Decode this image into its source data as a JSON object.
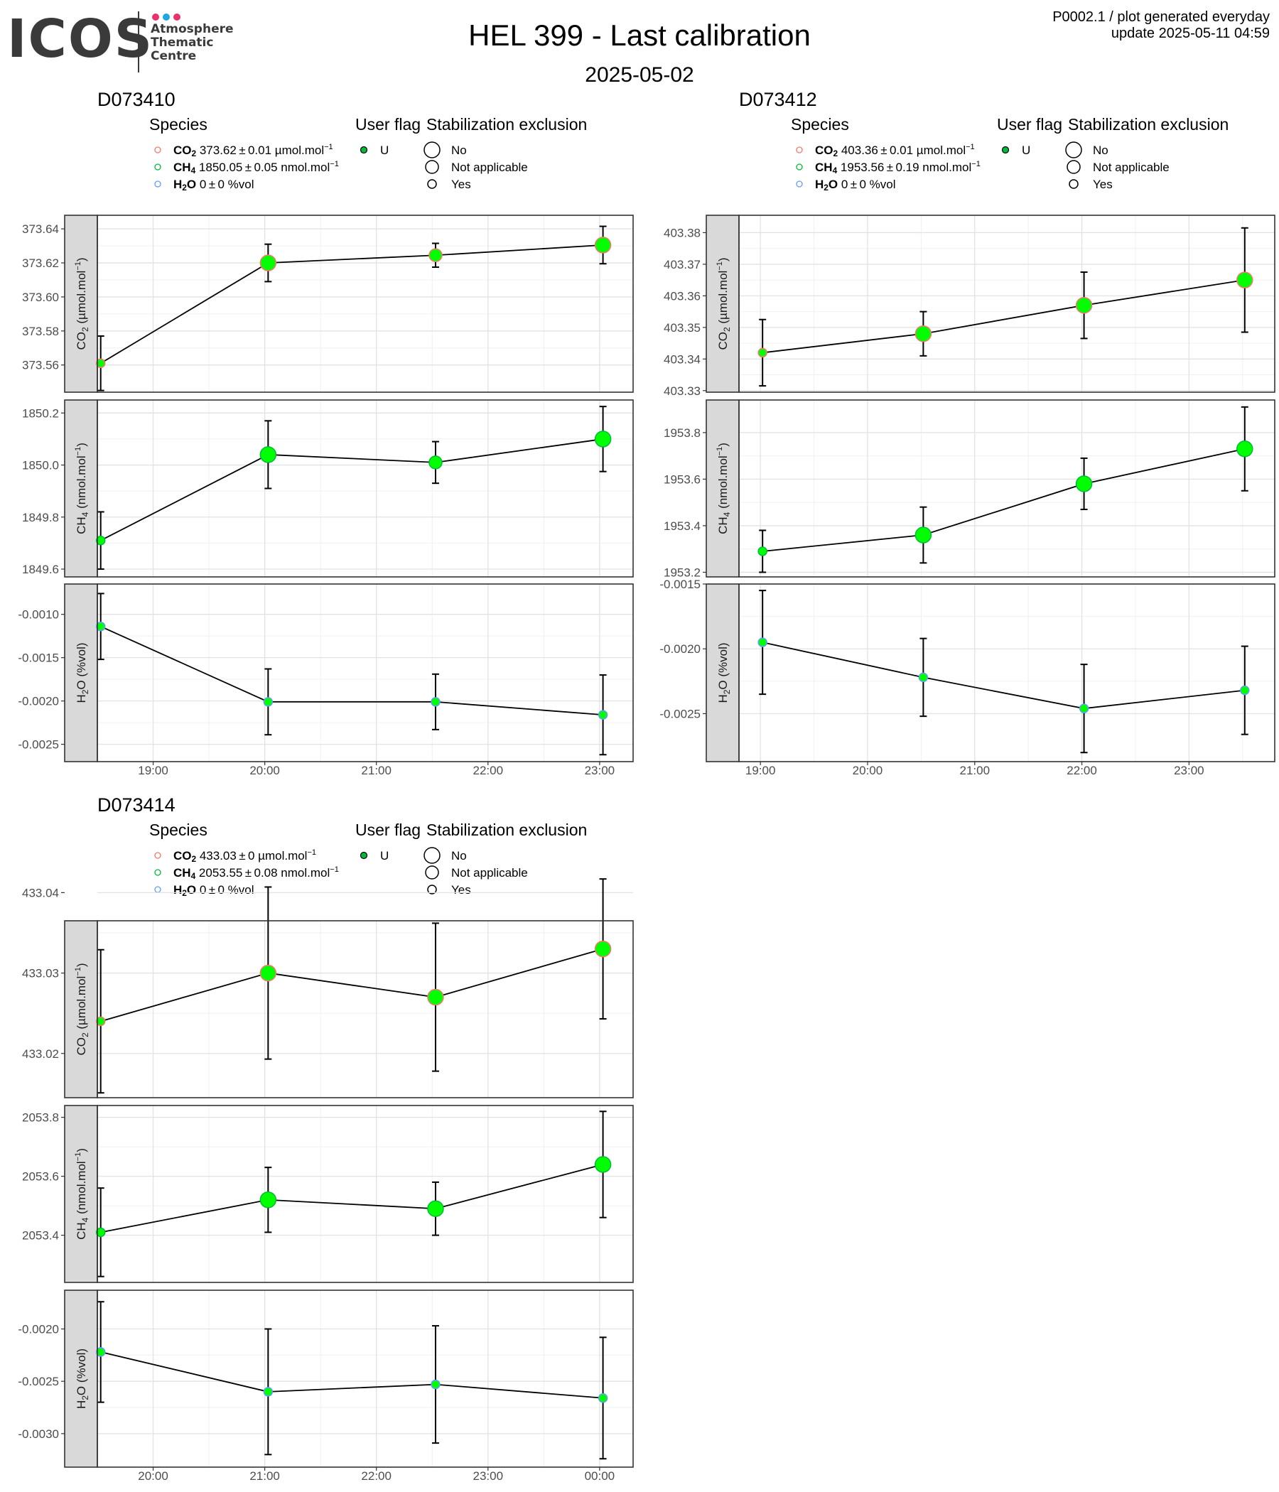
{
  "header": {
    "logo": {
      "word": "ICOS",
      "line1": "Atmosphere",
      "line2": "Thematic",
      "line3": "Centre",
      "dot_colors": [
        "#e8336d",
        "#1ea7e1",
        "#e8336d"
      ]
    },
    "title": "HEL 399 - Last calibration",
    "subtitle": "2025-05-02",
    "ref_line1": "P0002.1 / plot generated everyday",
    "ref_line2": "update  2025-05-11 04:59"
  },
  "legend_labels": {
    "species_title": "Species",
    "flag_title": "User flag",
    "stab_title": "Stabilization exclusion",
    "flag_value": "U",
    "stab_values": [
      "No",
      "Not applicable",
      "Yes"
    ],
    "species_colors": {
      "CO2": "#f8766d",
      "CH4": "#00ba38",
      "H2O": "#619cff"
    },
    "point_color": "#00ff00"
  },
  "chart_data": [
    {
      "type": "scatter",
      "title": "D073410",
      "legend": [
        {
          "name": "CO2",
          "value": "373.62 ± 0.01",
          "unit": "µmol.mol",
          "sup": "−1"
        },
        {
          "name": "CH4",
          "value": "1850.05 ± 0.05",
          "unit": "nmol.mol",
          "sup": "−1"
        },
        {
          "name": "H2O",
          "value": "0 ± 0",
          "unit": "%vol",
          "sup": ""
        }
      ],
      "x_ticks": [
        "19:00",
        "20:00",
        "21:00",
        "22:00",
        "23:00"
      ],
      "x_tick_hours": [
        19,
        20,
        21,
        22,
        23
      ],
      "xlim": [
        18.5,
        23.3
      ],
      "panels": [
        {
          "species": "CO2",
          "ylabel": "CO2 (µmol.mol-1)",
          "ylim": [
            373.544,
            373.648
          ],
          "y_ticks": [
            373.56,
            373.58,
            373.6,
            373.62,
            373.64
          ],
          "y_labels": [
            "373.56",
            "373.58",
            "373.60",
            "373.62",
            "373.64"
          ],
          "points": [
            {
              "x": 18.53,
              "y": 373.561,
              "err": 0.016,
              "stab": "Yes"
            },
            {
              "x": 20.03,
              "y": 373.62,
              "err": 0.011,
              "stab": "No"
            },
            {
              "x": 21.53,
              "y": 373.6245,
              "err": 0.007,
              "stab": "Not applicable"
            },
            {
              "x": 23.03,
              "y": 373.6305,
              "err": 0.011,
              "stab": "No"
            }
          ]
        },
        {
          "species": "CH4",
          "ylabel": "CH4 (nmol.mol-1)",
          "ylim": [
            1849.57,
            1850.25
          ],
          "y_ticks": [
            1849.6,
            1849.8,
            1850.0,
            1850.2
          ],
          "y_labels": [
            "1849.6",
            "1849.8",
            "1850.0",
            "1850.2"
          ],
          "points": [
            {
              "x": 18.53,
              "y": 1849.71,
              "err": 0.11,
              "stab": "Yes"
            },
            {
              "x": 20.03,
              "y": 1850.04,
              "err": 0.13,
              "stab": "No"
            },
            {
              "x": 21.53,
              "y": 1850.01,
              "err": 0.08,
              "stab": "Not applicable"
            },
            {
              "x": 23.03,
              "y": 1850.1,
              "err": 0.125,
              "stab": "No"
            }
          ]
        },
        {
          "species": "H2O",
          "ylabel": "H2O (%vol)",
          "ylim": [
            -0.0027,
            -0.00065
          ],
          "y_ticks": [
            -0.001,
            -0.0015,
            -0.002,
            -0.0025
          ],
          "y_labels": [
            "-0.0010",
            "-0.0015",
            "-0.0020",
            "-0.0025"
          ],
          "points": [
            {
              "x": 18.53,
              "y": -0.00114,
              "err": 0.00038,
              "stab": "Yes"
            },
            {
              "x": 20.03,
              "y": -0.00201,
              "err": 0.00038,
              "stab": "Yes"
            },
            {
              "x": 21.53,
              "y": -0.00201,
              "err": 0.00032,
              "stab": "Yes"
            },
            {
              "x": 23.03,
              "y": -0.00216,
              "err": 0.00046,
              "stab": "Yes"
            }
          ]
        }
      ]
    },
    {
      "type": "scatter",
      "title": "D073412",
      "legend": [
        {
          "name": "CO2",
          "value": "403.36 ± 0.01",
          "unit": "µmol.mol",
          "sup": "−1"
        },
        {
          "name": "CH4",
          "value": "1953.56 ± 0.19",
          "unit": "nmol.mol",
          "sup": "−1"
        },
        {
          "name": "H2O",
          "value": "0 ± 0",
          "unit": "%vol",
          "sup": ""
        }
      ],
      "x_ticks": [
        "19:00",
        "20:00",
        "21:00",
        "22:00",
        "23:00"
      ],
      "x_tick_hours": [
        19,
        20,
        21,
        22,
        23
      ],
      "xlim": [
        18.8,
        23.8
      ],
      "panels": [
        {
          "species": "CO2",
          "ylabel": "CO2 (µmol.mol-1)",
          "ylim": [
            403.3295,
            403.3855
          ],
          "y_ticks": [
            403.33,
            403.34,
            403.35,
            403.36,
            403.37,
            403.38
          ],
          "y_labels": [
            "403.33",
            "403.34",
            "403.35",
            "403.36",
            "403.37",
            "403.38"
          ],
          "points": [
            {
              "x": 19.02,
              "y": 403.342,
              "err": 0.0105,
              "stab": "Yes"
            },
            {
              "x": 20.52,
              "y": 403.348,
              "err": 0.007,
              "stab": "No"
            },
            {
              "x": 22.02,
              "y": 403.357,
              "err": 0.0105,
              "stab": "No"
            },
            {
              "x": 23.52,
              "y": 403.365,
              "err": 0.0165,
              "stab": "No"
            }
          ]
        },
        {
          "species": "CH4",
          "ylabel": "CH4 (nmol.mol-1)",
          "ylim": [
            1953.18,
            1953.94
          ],
          "y_ticks": [
            1953.2,
            1953.4,
            1953.6,
            1953.8
          ],
          "y_labels": [
            "1953.2",
            "1953.4",
            "1953.6",
            "1953.8"
          ],
          "points": [
            {
              "x": 19.02,
              "y": 1953.29,
              "err": 0.09,
              "stab": "Yes"
            },
            {
              "x": 20.52,
              "y": 1953.36,
              "err": 0.12,
              "stab": "No"
            },
            {
              "x": 22.02,
              "y": 1953.58,
              "err": 0.11,
              "stab": "No"
            },
            {
              "x": 23.52,
              "y": 1953.73,
              "err": 0.18,
              "stab": "No"
            }
          ]
        },
        {
          "species": "H2O",
          "ylabel": "H2O (%vol)",
          "ylim": [
            -0.00287,
            -0.0015
          ],
          "y_ticks": [
            -0.0015,
            -0.002,
            -0.0025
          ],
          "y_labels": [
            "-0.0015",
            "-0.0020",
            "-0.0025"
          ],
          "points": [
            {
              "x": 19.02,
              "y": -0.00195,
              "err": 0.0004,
              "stab": "Yes"
            },
            {
              "x": 20.52,
              "y": -0.00222,
              "err": 0.0003,
              "stab": "Yes"
            },
            {
              "x": 22.02,
              "y": -0.00246,
              "err": 0.00034,
              "stab": "Yes"
            },
            {
              "x": 23.52,
              "y": -0.00232,
              "err": 0.00034,
              "stab": "Yes"
            }
          ]
        }
      ]
    },
    {
      "type": "scatter",
      "title": "D073414",
      "legend": [
        {
          "name": "CO2",
          "value": "433.03 ± 0",
          "unit": "µmol.mol",
          "sup": "−1"
        },
        {
          "name": "CH4",
          "value": "2053.55 ± 0.08",
          "unit": "nmol.mol",
          "sup": "−1"
        },
        {
          "name": "H2O",
          "value": "0 ± 0",
          "unit": "%vol",
          "sup": ""
        }
      ],
      "x_ticks": [
        "20:00",
        "21:00",
        "22:00",
        "23:00",
        "00:00"
      ],
      "x_tick_hours": [
        20,
        21,
        22,
        23,
        24
      ],
      "xlim": [
        19.5,
        24.3
      ],
      "panels": [
        {
          "species": "CO2",
          "ylabel": "CO2 (µmol.mol-1)",
          "ylim": [
            433.0145,
            433.0365
          ],
          "y_ticks": [
            433.02,
            433.03,
            433.04
          ],
          "y_labels": [
            "433.02",
            "433.03",
            "433.04"
          ],
          "points": [
            {
              "x": 19.53,
              "y": 433.024,
              "err": 0.0089,
              "stab": "Yes"
            },
            {
              "x": 21.03,
              "y": 433.03,
              "err": 0.0107,
              "stab": "No"
            },
            {
              "x": 22.53,
              "y": 433.027,
              "err": 0.0092,
              "stab": "No"
            },
            {
              "x": 24.03,
              "y": 433.033,
              "err": 0.0087,
              "stab": "No"
            }
          ]
        },
        {
          "species": "CH4",
          "ylabel": "CH4 (nmol.mol-1)",
          "ylim": [
            2053.24,
            2053.84
          ],
          "y_ticks": [
            2053.4,
            2053.6,
            2053.8
          ],
          "y_labels": [
            "2053.4",
            "2053.6",
            "2053.8"
          ],
          "points": [
            {
              "x": 19.53,
              "y": 2053.41,
              "err": 0.15,
              "stab": "Yes"
            },
            {
              "x": 21.03,
              "y": 2053.52,
              "err": 0.11,
              "stab": "No"
            },
            {
              "x": 22.53,
              "y": 2053.49,
              "err": 0.09,
              "stab": "No"
            },
            {
              "x": 24.03,
              "y": 2053.64,
              "err": 0.18,
              "stab": "No"
            }
          ]
        },
        {
          "species": "H2O",
          "ylabel": "H2O (%vol)",
          "ylim": [
            -0.00332,
            -0.00163
          ],
          "y_ticks": [
            -0.002,
            -0.0025,
            -0.003
          ],
          "y_labels": [
            "-0.0020",
            "-0.0025",
            "-0.0030"
          ],
          "points": [
            {
              "x": 19.53,
              "y": -0.00222,
              "err": 0.00048,
              "stab": "Yes"
            },
            {
              "x": 21.03,
              "y": -0.0026,
              "err": 0.0006,
              "stab": "Yes"
            },
            {
              "x": 22.53,
              "y": -0.00253,
              "err": 0.00056,
              "stab": "Yes"
            },
            {
              "x": 24.03,
              "y": -0.00266,
              "err": 0.00058,
              "stab": "Yes"
            }
          ]
        }
      ]
    }
  ]
}
